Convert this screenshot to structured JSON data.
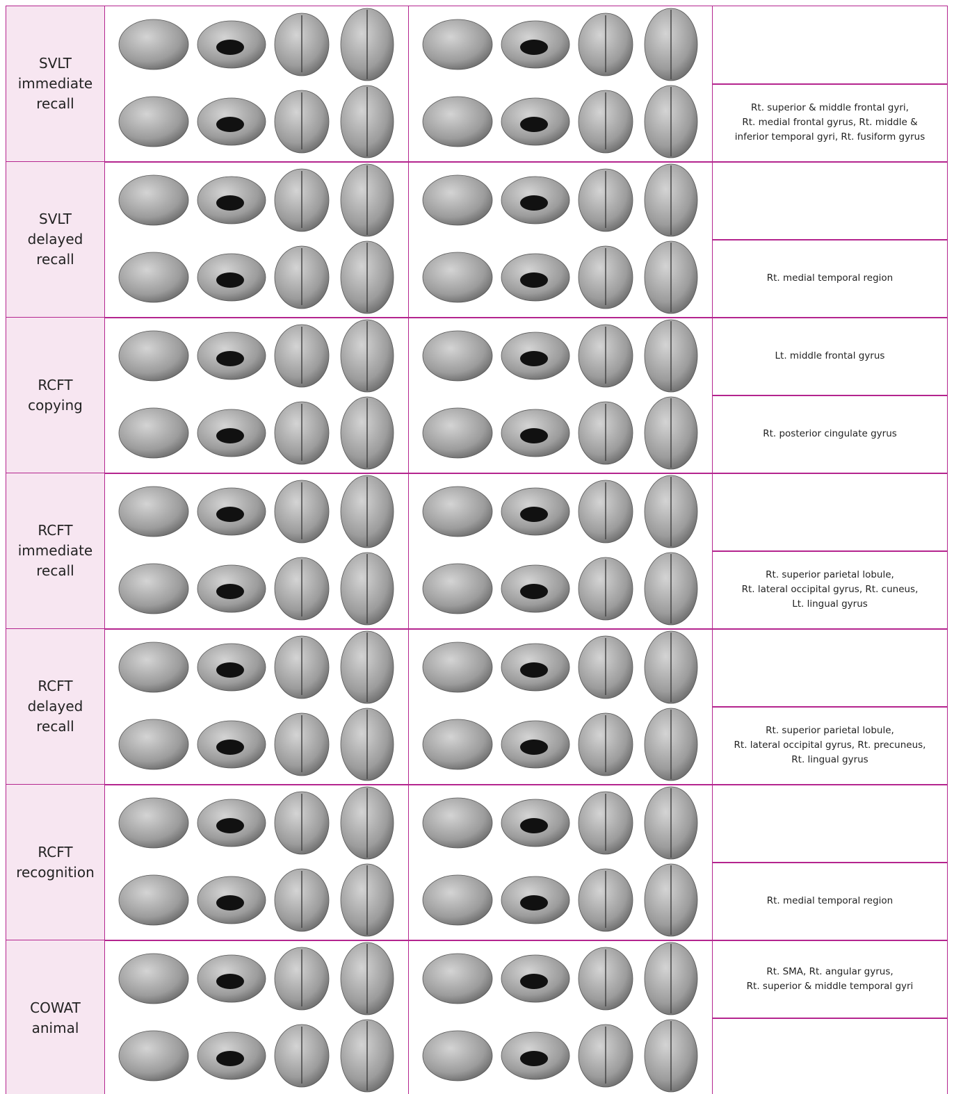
{
  "table": {
    "rows": [
      {
        "label": [
          "SVLT",
          "immediate",
          "recall"
        ],
        "bottom": [
          "Rt. superior & middle frontal gyri,",
          "Rt. medial frontal gyrus, Rt. middle &",
          "inferior temporal gyri, Rt. fusiform gyrus"
        ]
      },
      {
        "label": [
          "SVLT",
          "delayed",
          "recall"
        ],
        "bottom": [
          "Rt. medial temporal region"
        ]
      },
      {
        "label": [
          "RCFT",
          "copying"
        ],
        "top": [
          "Lt. middle frontal gyrus"
        ],
        "bottom": [
          "Rt. posterior cingulate gyrus"
        ]
      },
      {
        "label": [
          "RCFT",
          "immediate",
          "recall"
        ],
        "bottom": [
          "Rt. superior parietal lobule,",
          "Rt. lateral occipital gyrus, Rt. cuneus,",
          "Lt. lingual gyrus"
        ]
      },
      {
        "label": [
          "RCFT",
          "delayed",
          "recall"
        ],
        "bottom": [
          "Rt. superior parietal lobule,",
          "Rt. lateral occipital gyrus, Rt. precuneus,",
          "Rt. lingual gyrus"
        ]
      },
      {
        "label": [
          "RCFT",
          "recognition"
        ],
        "bottom": [
          "Rt. medial temporal region"
        ]
      },
      {
        "label": [
          "COWAT",
          "animal"
        ],
        "top": [
          "Rt. SMA, Rt. angular gyrus,",
          "Rt. superior & middle temporal gyri"
        ]
      }
    ]
  }
}
